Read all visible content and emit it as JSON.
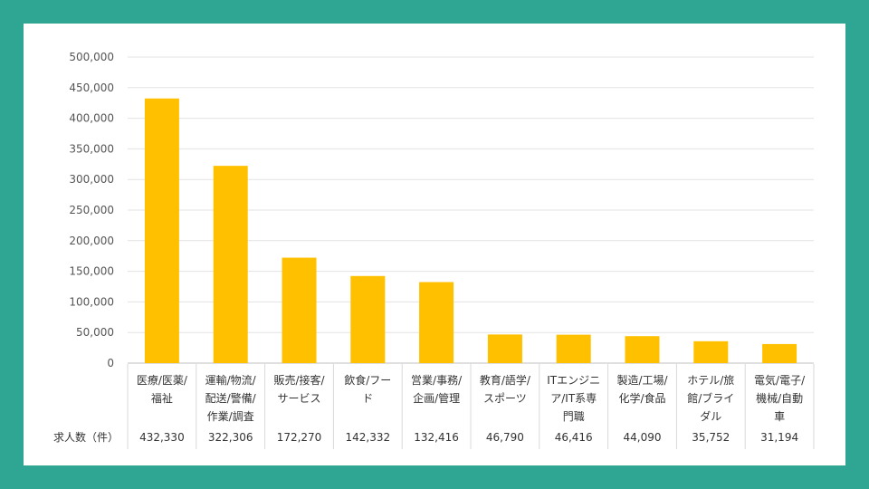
{
  "chart_data": {
    "type": "bar",
    "categories": [
      [
        "医療/医薬/",
        "福祉"
      ],
      [
        "運輸/物流/",
        "配送/警備/",
        "作業/調査"
      ],
      [
        "販売/接客/",
        "サービス"
      ],
      [
        "飲食/フー",
        "ド"
      ],
      [
        "営業/事務/",
        "企画/管理"
      ],
      [
        "教育/語学/",
        "スポーツ"
      ],
      [
        "ITエンジニ",
        "ア/IT系専",
        "門職"
      ],
      [
        "製造/工場/",
        "化学/食品"
      ],
      [
        "ホテル/旅",
        "館/ブライ",
        "ダル"
      ],
      [
        "電気/電子/",
        "機械/自動",
        "車"
      ]
    ],
    "values": [
      432330,
      322306,
      172270,
      142332,
      132416,
      46790,
      46416,
      44090,
      35752,
      31194
    ],
    "value_labels": [
      "432,330",
      "322,306",
      "172,270",
      "142,332",
      "132,416",
      "46,790",
      "46,416",
      "44,090",
      "35,752",
      "31,194"
    ],
    "row_label": "求人数（件）",
    "ylim": [
      0,
      500000
    ],
    "yticks": [
      "0",
      "50,000",
      "100,000",
      "150,000",
      "200,000",
      "250,000",
      "300,000",
      "350,000",
      "400,000",
      "450,000",
      "500,000"
    ],
    "grid": true,
    "bar_color": "#ffc000"
  }
}
